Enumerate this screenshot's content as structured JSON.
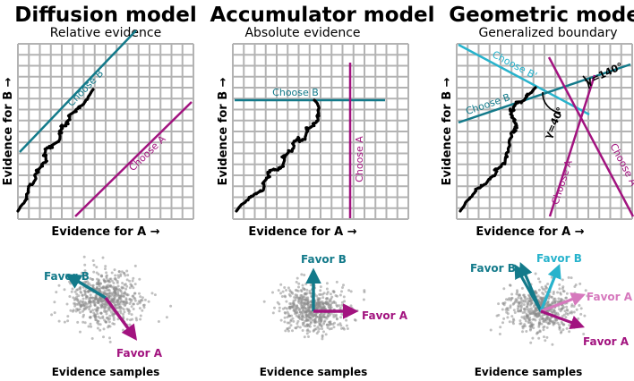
{
  "colors": {
    "teal": "#137a8a",
    "purple": "#a2137f",
    "cyan": "#27b3cc",
    "pink": "#d678bd",
    "grid": "#b3b3b3",
    "walk": "#000000",
    "dots": "#8c8c8c"
  },
  "panels": [
    {
      "title": "Diffusion model",
      "subtitle": "Relative evidence",
      "y_label": "Evidence for B →",
      "x_label": "Evidence for A →",
      "boundaries": [
        "Choose B",
        "Choose A"
      ],
      "vectors": [
        "Favor B",
        "Favor A"
      ],
      "samples_label": "Evidence samples"
    },
    {
      "title": "Accumulator model",
      "subtitle": "Absolute evidence",
      "y_label": "Evidence for B →",
      "x_label": "Evidence for A →",
      "boundaries": [
        "Choose B",
        "Choose A"
      ],
      "vectors": [
        "Favor B",
        "Favor A"
      ],
      "samples_label": "Evidence samples"
    },
    {
      "title": "Geometric model",
      "subtitle": "Generalized boundary",
      "y_label": "Evidence for B →",
      "x_label": "Evidence for A →",
      "boundaries": [
        "Choose B'",
        "Choose B",
        "Choose A",
        "Choose A'"
      ],
      "angles": [
        "γ=140°",
        "γ=40°"
      ],
      "vectors": [
        "Favor B",
        "Favor B",
        "Favor A",
        "Favor A"
      ],
      "samples_label": "Evidence samples"
    }
  ]
}
